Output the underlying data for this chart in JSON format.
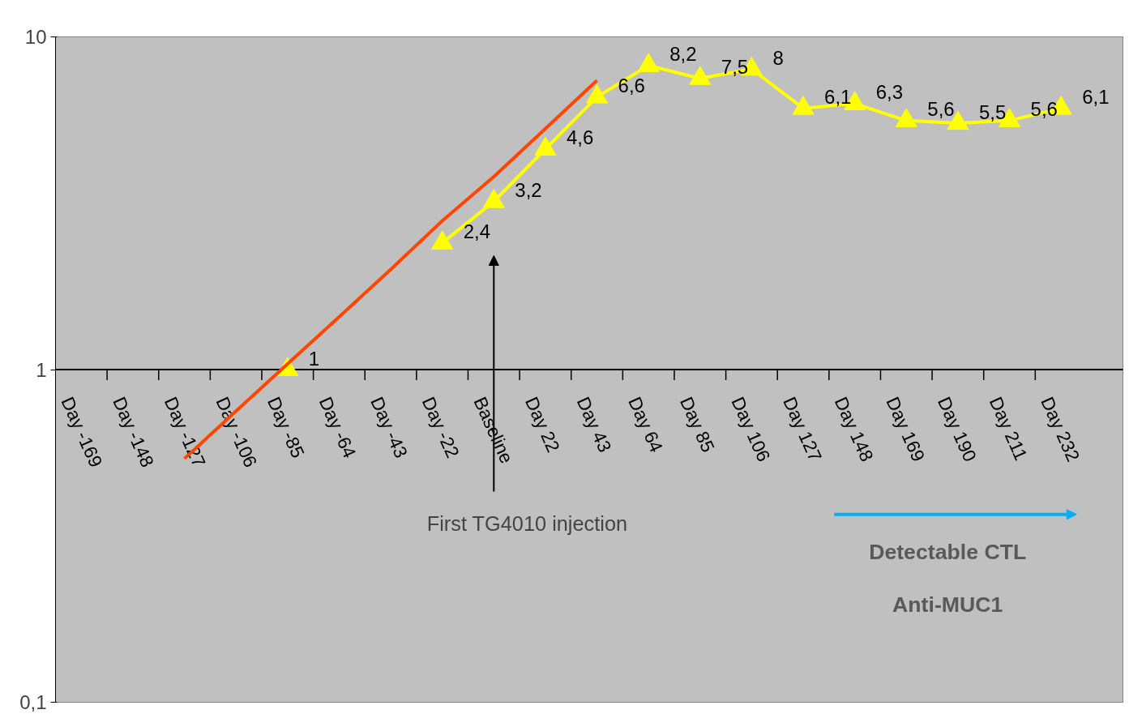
{
  "chart_data": {
    "type": "line",
    "log": "y",
    "categories": [
      "Day -169",
      "Day -148",
      "Day -127",
      "Day -106",
      "Day -85",
      "Day -64",
      "Day -43",
      "Day -22",
      "Baseline",
      "Day 22",
      "Day 43",
      "Day 64",
      "Day 85",
      "Day 106",
      "Day 127",
      "Day 148",
      "Day 169",
      "Day 190",
      "Day 211",
      "Day 232"
    ],
    "series": [
      {
        "color": "#ffff00",
        "marker": "triangle",
        "values": [
          null,
          null,
          null,
          null,
          1,
          null,
          null,
          2.4,
          3.2,
          4.6,
          6.6,
          8.2,
          7.5,
          8,
          6.1,
          6.3,
          5.6,
          5.5,
          5.6,
          6.1
        ],
        "value_labels": [
          null,
          null,
          null,
          null,
          "1",
          null,
          null,
          "2,4",
          "3,2",
          "4,6",
          "6,6",
          "8,2",
          "7,5",
          "8",
          "6,1",
          "6,3",
          "5,6",
          "5,5",
          "5,6",
          "6,1"
        ]
      },
      {
        "type": "line",
        "color": "#ff4500",
        "marker": "none",
        "values": [
          null,
          null,
          0.54,
          0.75,
          1.04,
          1.44,
          2,
          2.8,
          3.8,
          5.3,
          7.4,
          null,
          null,
          null,
          null,
          null,
          null,
          null,
          null,
          null
        ]
      }
    ],
    "ylim": [
      0.1,
      10
    ],
    "yticks": [
      {
        "value": 0.1,
        "label": "0,1"
      },
      1,
      10
    ],
    "grid": false,
    "annotations": [
      "First TG4010 injection",
      "Detectable CTL",
      "Anti-MUC1"
    ]
  }
}
